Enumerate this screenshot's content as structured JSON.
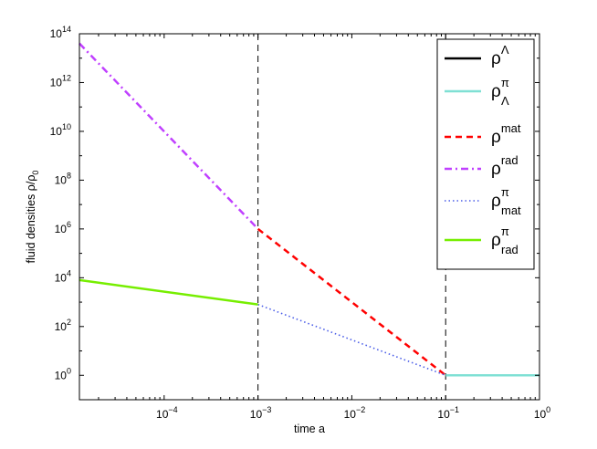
{
  "chart_data": {
    "type": "line",
    "xlabel": "time a",
    "ylabel_text": "fluid densities ρ/ρ",
    "ylabel_sub": "0",
    "xscale": "log",
    "yscale": "log",
    "xlim": [
      1.25e-05,
      1
    ],
    "ylim": [
      0.1,
      100000000000000
    ],
    "x_ticks": [
      {
        "value": 0.0001,
        "base": "10",
        "exp": "−4"
      },
      {
        "value": 0.001,
        "base": "10",
        "exp": "−3"
      },
      {
        "value": 0.01,
        "base": "10",
        "exp": "−2"
      },
      {
        "value": 0.1,
        "base": "10",
        "exp": "−1"
      },
      {
        "value": 1,
        "base": "10",
        "exp": "0"
      }
    ],
    "y_ticks": [
      {
        "value": 1,
        "base": "10",
        "exp": "0"
      },
      {
        "value": 100,
        "base": "10",
        "exp": "2"
      },
      {
        "value": 10000,
        "base": "10",
        "exp": "4"
      },
      {
        "value": 1000000,
        "base": "10",
        "exp": "6"
      },
      {
        "value": 100000000,
        "base": "10",
        "exp": "8"
      },
      {
        "value": 10000000000,
        "base": "10",
        "exp": "10"
      },
      {
        "value": 1000000000000,
        "base": "10",
        "exp": "12"
      },
      {
        "value": 100000000000000,
        "base": "10",
        "exp": "14"
      }
    ],
    "vlines": [
      0.001,
      0.1
    ],
    "legend_position": "top-right",
    "series": [
      {
        "name": "ρ",
        "sup": "Λ",
        "sub": "",
        "color": "#000000",
        "dash": "solid",
        "x": [],
        "y": []
      },
      {
        "name": "ρ",
        "sup": "π",
        "sub": "Λ",
        "color": "#7fe0d4",
        "dash": "solid",
        "x": [
          0.1,
          1
        ],
        "y": [
          1,
          1
        ]
      },
      {
        "name": "ρ",
        "sup": "mat",
        "sub": "",
        "color": "#ff0000",
        "dash": "dashed",
        "x": [
          0.001,
          0.1
        ],
        "y": [
          1000000,
          1
        ]
      },
      {
        "name": "ρ",
        "sup": "rad",
        "sub": "",
        "color": "#c040ff",
        "dash": "dashdot",
        "x": [
          1.25e-05,
          0.001
        ],
        "y": [
          40000000000000,
          1000000
        ]
      },
      {
        "name": "ρ",
        "sup": "π",
        "sub": "mat",
        "color": "#4a5de8",
        "dash": "dotted",
        "x": [
          0.001,
          0.1
        ],
        "y": [
          800,
          1
        ]
      },
      {
        "name": "ρ",
        "sup": "π",
        "sub": "rad",
        "color": "#76ee00",
        "dash": "solid",
        "x": [
          1.25e-05,
          0.001
        ],
        "y": [
          8000,
          800
        ]
      }
    ]
  }
}
